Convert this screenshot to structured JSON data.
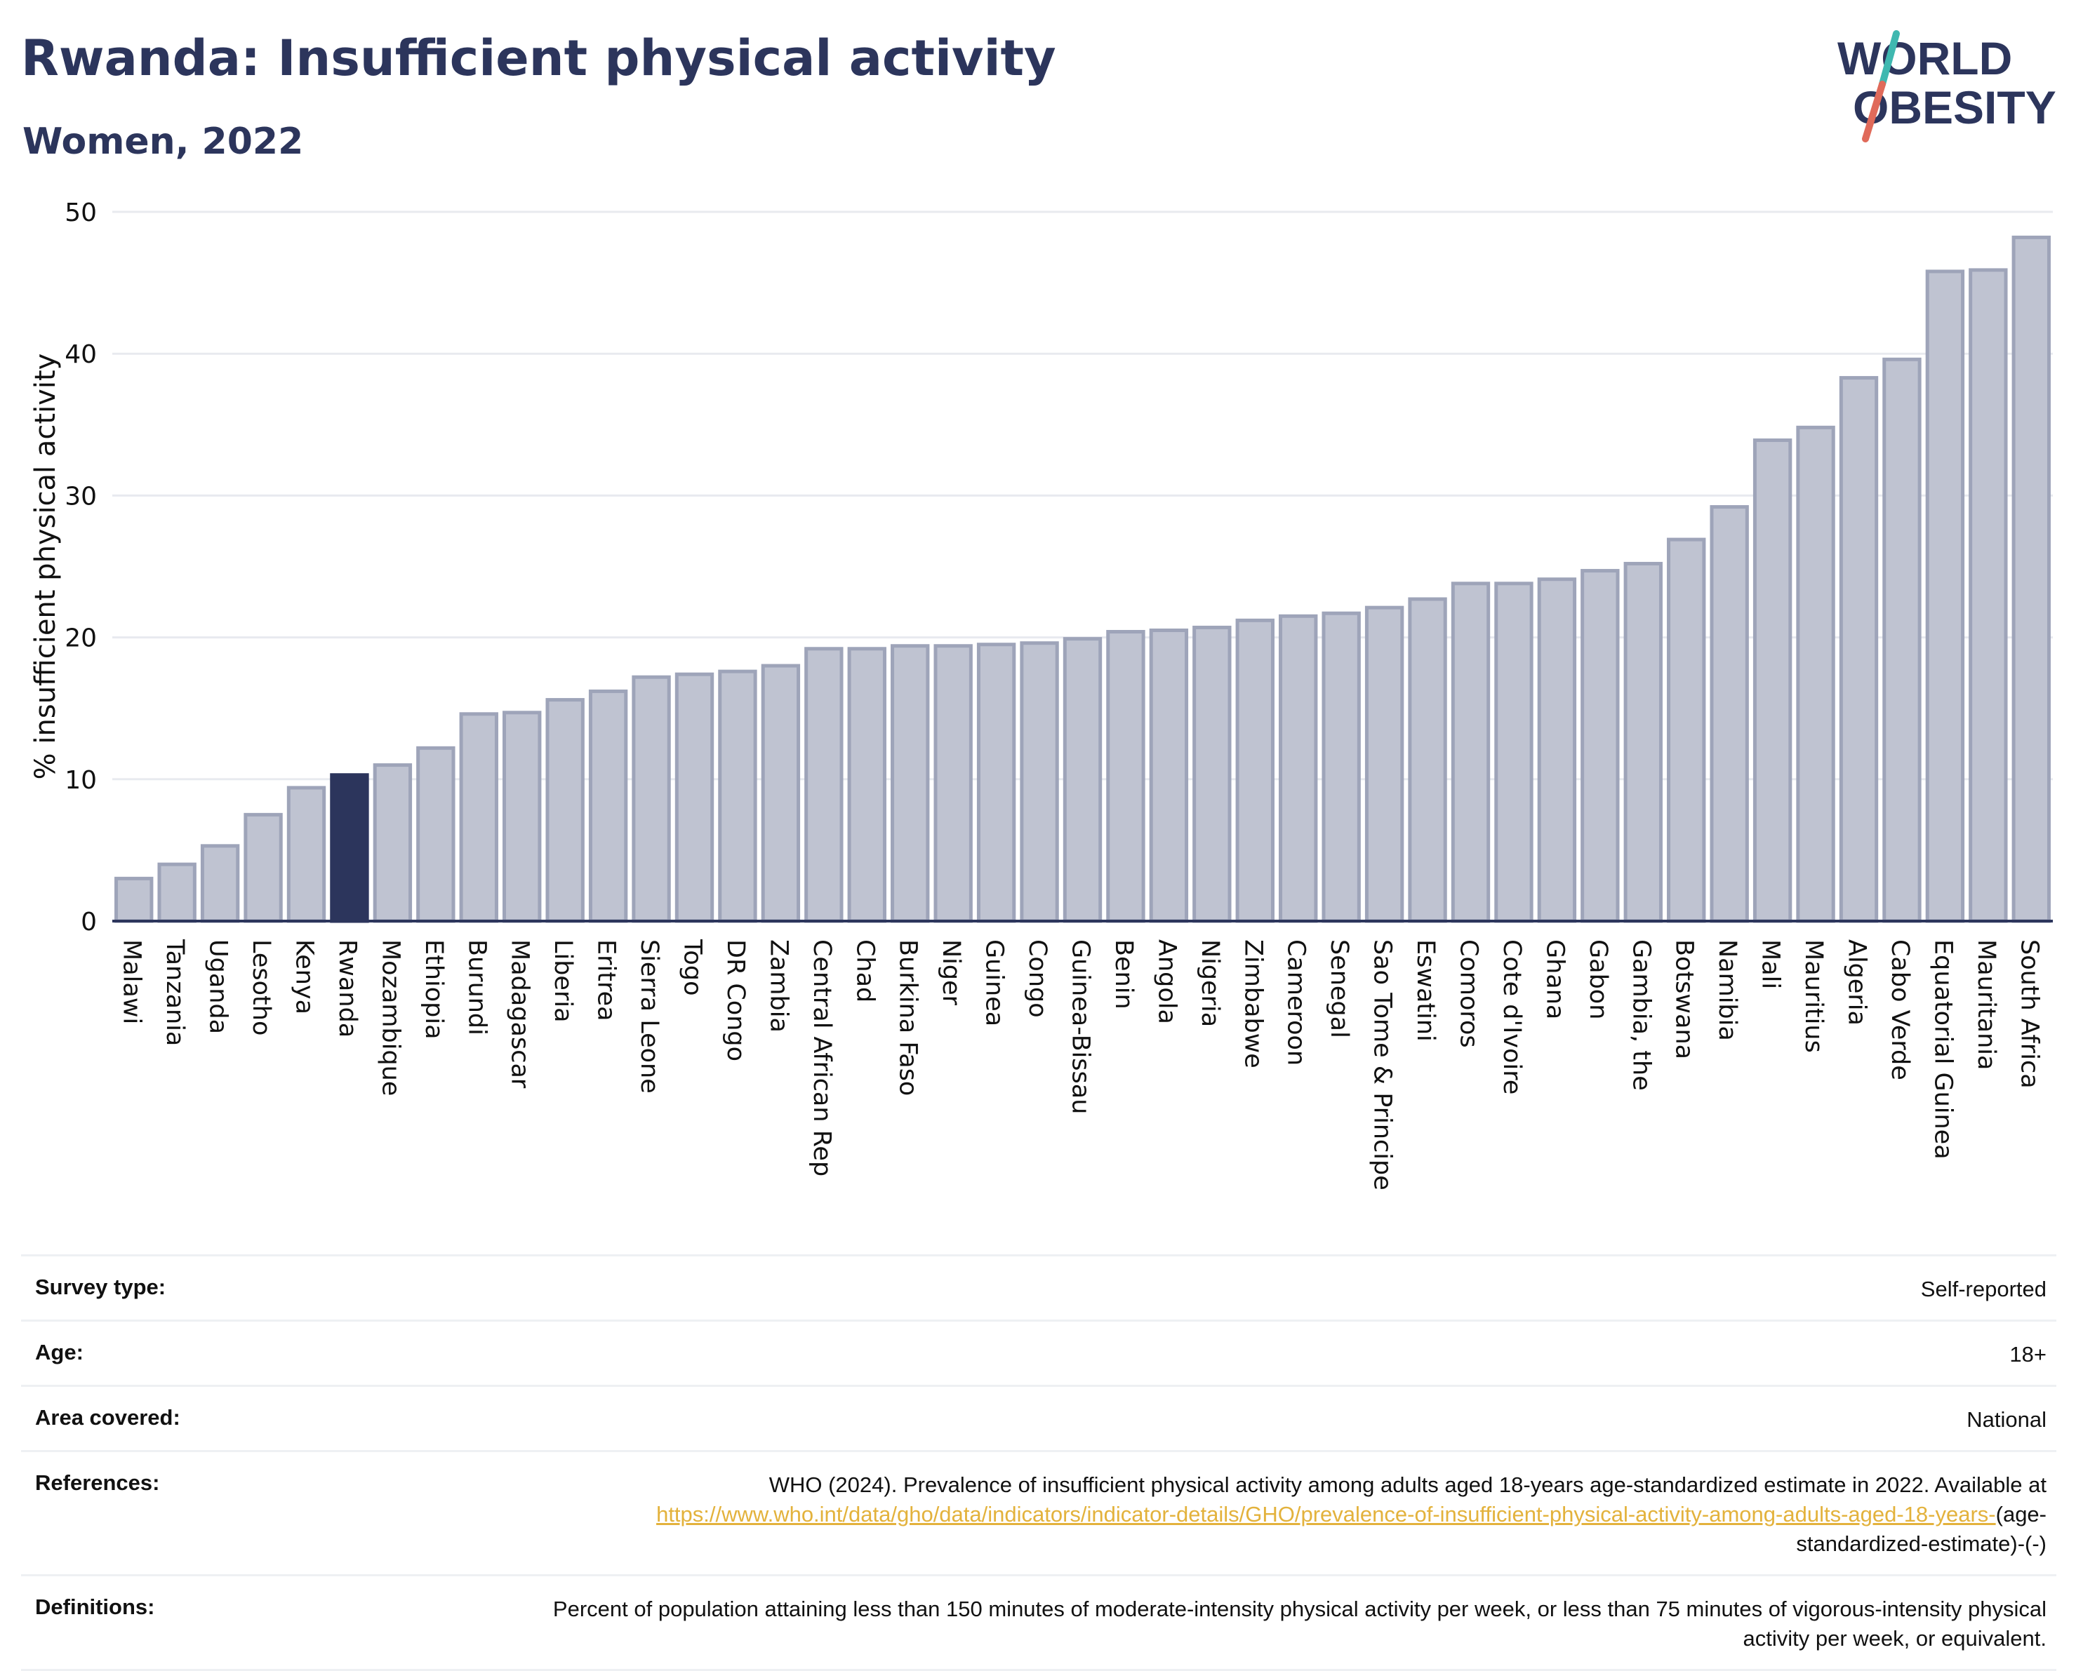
{
  "header": {
    "title": "Rwanda: Insufficient physical activity",
    "subtitle": "Women, 2022"
  },
  "logo": {
    "line1": "WORLD",
    "line2": "OBESITY"
  },
  "colors": {
    "highlight": "#2c355c",
    "bar_fill": "#bfc3d1",
    "bar_stroke": "#9ea4b9",
    "title": "#2c355c",
    "link": "#e3b23c",
    "logo_slash_teal": "#3fb8b0",
    "logo_slash_red": "#e06a5a"
  },
  "chart_data": {
    "type": "bar",
    "ylabel": "% insufficient physical activity",
    "xlabel": "",
    "ylim": [
      0,
      50
    ],
    "yticks": [
      "0",
      "10",
      "20",
      "30",
      "40",
      "50"
    ],
    "grid": true,
    "highlight": "Rwanda",
    "categories": [
      "Malawi",
      "Tanzania",
      "Uganda",
      "Lesotho",
      "Kenya",
      "Rwanda",
      "Mozambique",
      "Ethiopia",
      "Burundi",
      "Madagascar",
      "Liberia",
      "Eritrea",
      "Sierra Leone",
      "Togo",
      "DR Congo",
      "Zambia",
      "Central African Rep",
      "Chad",
      "Burkina Faso",
      "Niger",
      "Guinea",
      "Congo",
      "Guinea-Bissau",
      "Benin",
      "Angola",
      "Nigeria",
      "Zimbabwe",
      "Cameroon",
      "Senegal",
      "Sao Tome & Principe",
      "Eswatini",
      "Comoros",
      "Cote d'Ivoire",
      "Ghana",
      "Gabon",
      "Gambia, the",
      "Botswana",
      "Namibia",
      "Mali",
      "Mauritius",
      "Algeria",
      "Cabo Verde",
      "Equatorial Guinea",
      "Mauritania",
      "South Africa"
    ],
    "values": [
      3.0,
      4.0,
      5.3,
      7.5,
      9.4,
      10.3,
      11.0,
      12.2,
      14.6,
      14.7,
      15.6,
      16.2,
      17.2,
      17.4,
      17.6,
      18.0,
      19.2,
      19.2,
      19.4,
      19.4,
      19.5,
      19.6,
      19.9,
      20.4,
      20.5,
      20.7,
      21.2,
      21.5,
      21.7,
      22.1,
      22.7,
      23.8,
      23.8,
      24.1,
      24.7,
      25.2,
      26.9,
      29.2,
      33.9,
      34.8,
      38.3,
      39.6,
      45.8,
      45.9,
      48.2
    ]
  },
  "meta": [
    {
      "label": "Survey type:",
      "value": "Self-reported"
    },
    {
      "label": "Age:",
      "value": "18+"
    },
    {
      "label": "Area covered:",
      "value": "National"
    },
    {
      "label": "References:",
      "value_prefix": "WHO (2024). Prevalence of insufficient physical activity among adults aged 18-years age-standardized estimate in 2022. Available at",
      "link": "https://www.who.int/data/gho/data/indicators/indicator-details/GHO/prevalence-of-insufficient-physical-activity-among-adults-aged-18-years-",
      "value_suffix": "(age-standardized-estimate)-(-)"
    },
    {
      "label": "Definitions:",
      "value": "Percent of population attaining less than 150 minutes of moderate-intensity physical activity per week, or less than 75 minutes of vigorous-intensity physical activity per week, or equivalent."
    }
  ]
}
